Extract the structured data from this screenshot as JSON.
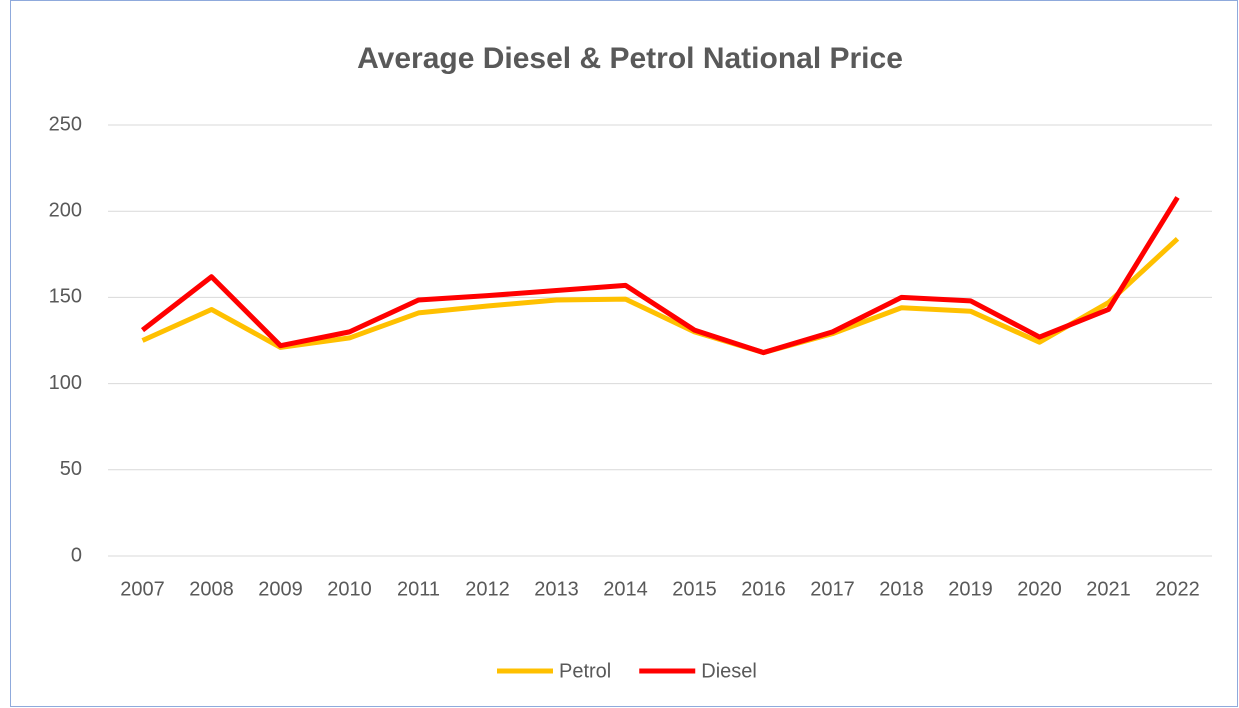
{
  "chart_data": {
    "type": "line",
    "title": "Average Diesel & Petrol National Price",
    "categories": [
      "2007",
      "2008",
      "2009",
      "2010",
      "2011",
      "2012",
      "2013",
      "2014",
      "2015",
      "2016",
      "2017",
      "2018",
      "2019",
      "2020",
      "2021",
      "2022"
    ],
    "series": [
      {
        "name": "Petrol",
        "color": "#ffc000",
        "values": [
          125,
          143,
          121,
          126.5,
          141,
          145,
          148.5,
          149,
          130,
          118,
          129,
          144,
          142,
          124,
          147,
          184
        ]
      },
      {
        "name": "Diesel",
        "color": "#ff0000",
        "values": [
          131,
          162,
          122,
          130,
          148.5,
          151,
          154,
          157,
          131,
          118,
          130,
          150,
          148,
          127,
          143,
          208
        ]
      }
    ],
    "ylim": [
      0,
      250
    ],
    "yticks": [
      0,
      50,
      100,
      150,
      200,
      250
    ],
    "grid": true,
    "legend": "bottom"
  }
}
